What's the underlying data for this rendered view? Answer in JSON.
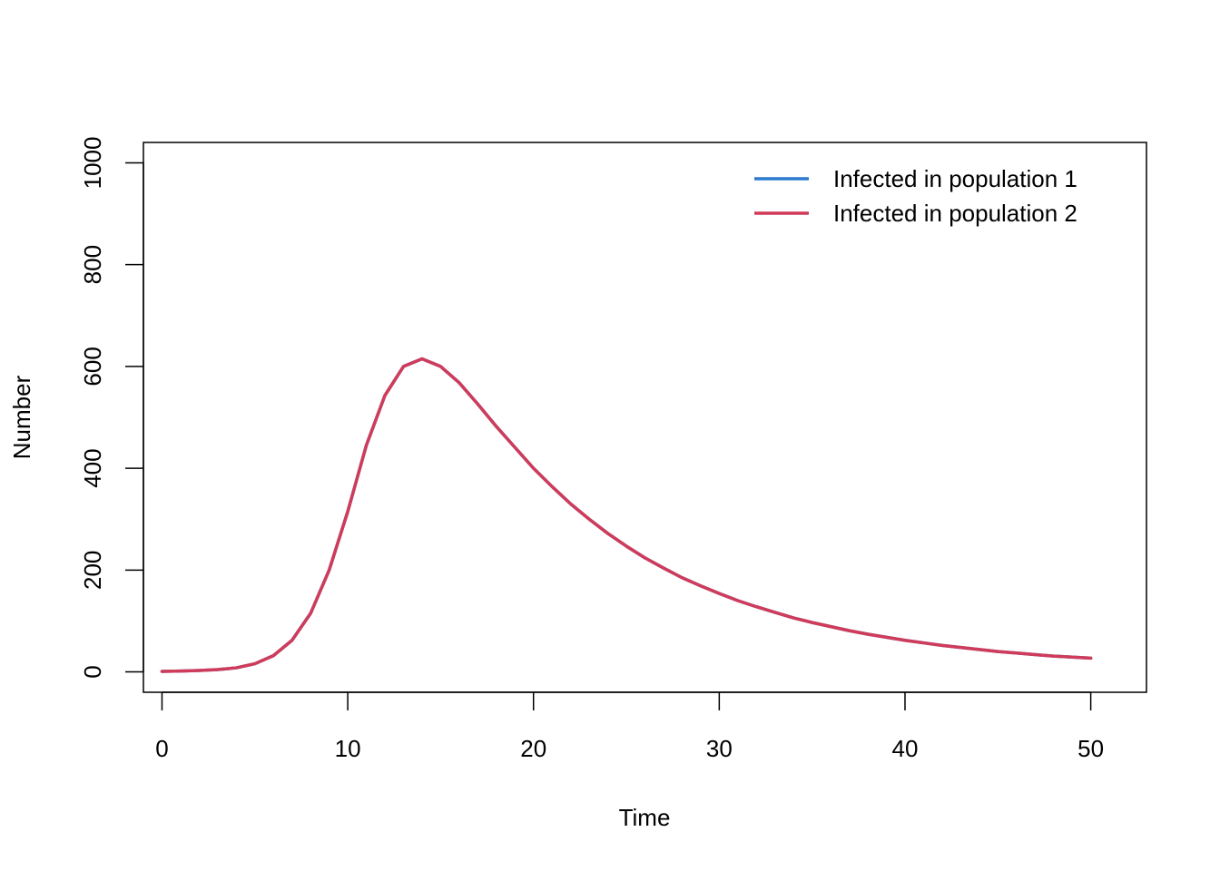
{
  "chart_data": {
    "type": "line",
    "title": "",
    "xlabel": "Time",
    "ylabel": "Number",
    "xlim": [
      -1,
      53
    ],
    "ylim": [
      -40,
      1040
    ],
    "xticks": [
      0,
      10,
      20,
      30,
      40,
      50
    ],
    "yticks": [
      0,
      200,
      400,
      600,
      800,
      1000
    ],
    "grid": false,
    "legend_position": "top-right",
    "x": [
      0,
      1,
      2,
      3,
      4,
      5,
      6,
      7,
      8,
      9,
      10,
      11,
      12,
      13,
      14,
      15,
      16,
      17,
      18,
      19,
      20,
      21,
      22,
      23,
      24,
      25,
      26,
      27,
      28,
      29,
      30,
      31,
      32,
      33,
      34,
      35,
      36,
      37,
      38,
      39,
      40,
      41,
      42,
      43,
      44,
      45,
      46,
      47,
      48,
      49,
      50
    ],
    "series": [
      {
        "name": "Infected in population 1",
        "color": "#2b7bd0",
        "values": [
          1,
          1.6,
          2.7,
          4.5,
          8,
          16,
          32,
          62,
          115,
          200,
          315,
          445,
          543,
          600,
          615,
          600,
          568,
          526,
          482,
          441,
          400,
          364,
          330,
          300,
          272,
          247,
          224,
          204,
          185,
          169,
          154,
          140,
          128,
          117,
          106,
          97,
          89,
          81,
          74,
          68,
          62,
          57,
          52,
          48,
          44,
          40,
          37,
          34,
          31,
          29,
          27
        ]
      },
      {
        "name": "Infected in population 2",
        "color": "#d03b5a",
        "values": [
          1,
          1.6,
          2.7,
          4.5,
          8,
          16,
          32,
          62,
          115,
          200,
          315,
          445,
          543,
          600,
          615,
          600,
          568,
          526,
          482,
          441,
          400,
          364,
          330,
          300,
          272,
          247,
          224,
          204,
          185,
          169,
          154,
          140,
          128,
          117,
          106,
          97,
          89,
          81,
          74,
          68,
          62,
          57,
          52,
          48,
          44,
          40,
          37,
          34,
          31,
          29,
          27
        ]
      }
    ]
  }
}
